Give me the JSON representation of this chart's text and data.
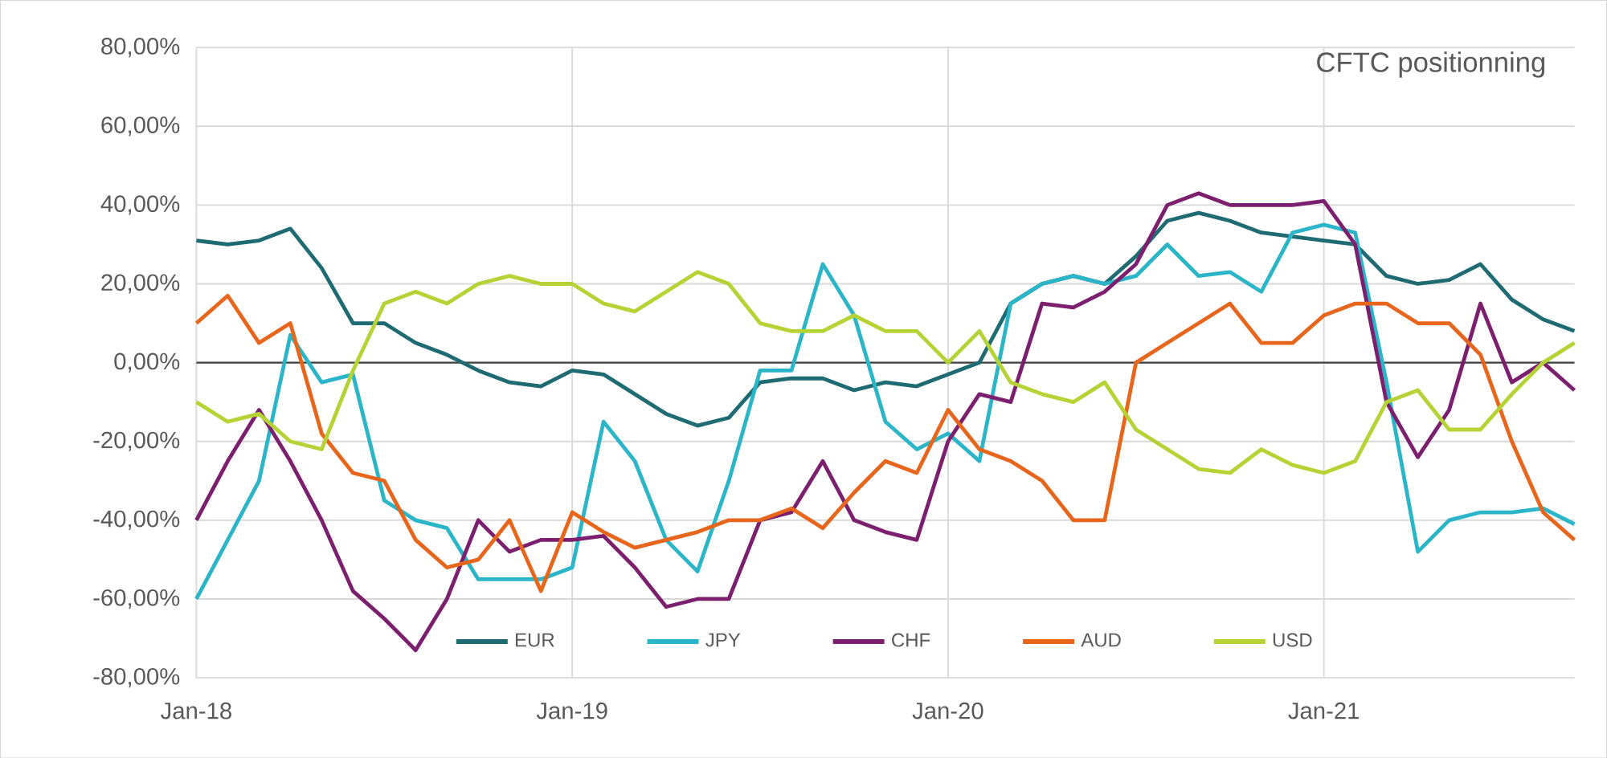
{
  "chart_data": {
    "type": "line",
    "title": "CFTC positionning",
    "x": [
      "2018-01-01",
      "2018-02-01",
      "2018-03-01",
      "2018-04-01",
      "2018-05-01",
      "2018-06-01",
      "2018-07-01",
      "2018-08-01",
      "2018-09-01",
      "2018-10-01",
      "2018-11-01",
      "2018-12-01",
      "2019-01-01",
      "2019-02-01",
      "2019-03-01",
      "2019-04-01",
      "2019-05-01",
      "2019-06-01",
      "2019-07-01",
      "2019-08-01",
      "2019-09-01",
      "2019-10-01",
      "2019-11-01",
      "2019-12-01",
      "2020-01-01",
      "2020-02-01",
      "2020-03-01",
      "2020-04-01",
      "2020-05-01",
      "2020-06-01",
      "2020-07-01",
      "2020-08-01",
      "2020-09-01",
      "2020-10-01",
      "2020-11-01",
      "2020-12-01",
      "2021-01-01",
      "2021-02-01",
      "2021-03-01",
      "2021-04-01",
      "2021-05-01",
      "2021-06-01",
      "2021-07-01",
      "2021-08-01",
      "2021-09-01"
    ],
    "series": [
      {
        "name": "EUR",
        "color": "#1f6b73",
        "values": [
          31,
          30,
          31,
          34,
          24,
          10,
          10,
          5,
          2,
          -2,
          -5,
          -6,
          -2,
          -3,
          -8,
          -13,
          -16,
          -14,
          -5,
          -4,
          -4,
          -7,
          -5,
          -6,
          -3,
          0,
          15,
          20,
          22,
          20,
          27,
          36,
          38,
          36,
          33,
          32,
          31,
          30,
          22,
          20,
          21,
          25,
          16,
          11,
          8
        ]
      },
      {
        "name": "JPY",
        "color": "#2bb5c8",
        "values": [
          -60,
          -45,
          -30,
          7,
          -5,
          -3,
          -35,
          -40,
          -42,
          -55,
          -55,
          -55,
          -52,
          -15,
          -25,
          -45,
          -53,
          -30,
          -2,
          -2,
          25,
          12,
          -15,
          -22,
          -18,
          -25,
          15,
          20,
          22,
          20,
          22,
          30,
          22,
          23,
          18,
          33,
          35,
          33,
          -5,
          -48,
          -40,
          -38,
          -38,
          -37,
          -41
        ]
      },
      {
        "name": "CHF",
        "color": "#7b1f6e",
        "values": [
          -40,
          -25,
          -12,
          -25,
          -40,
          -58,
          -65,
          -73,
          -60,
          -40,
          -48,
          -45,
          -45,
          -44,
          -52,
          -62,
          -60,
          -60,
          -40,
          -38,
          -25,
          -40,
          -43,
          -45,
          -20,
          -8,
          -10,
          15,
          14,
          18,
          25,
          40,
          43,
          40,
          40,
          40,
          41,
          30,
          -10,
          -24,
          -12,
          15,
          -5,
          0,
          -7
        ]
      },
      {
        "name": "AUD",
        "color": "#e8661c",
        "values": [
          10,
          17,
          5,
          10,
          -18,
          -28,
          -30,
          -45,
          -52,
          -50,
          -40,
          -58,
          -38,
          -43,
          -47,
          -45,
          -43,
          -40,
          -40,
          -37,
          -42,
          -33,
          -25,
          -28,
          -12,
          -22,
          -25,
          -30,
          -40,
          -40,
          0,
          5,
          10,
          15,
          5,
          5,
          12,
          15,
          15,
          10,
          10,
          2,
          -20,
          -38,
          -45
        ]
      },
      {
        "name": "USD",
        "color": "#b5d334",
        "values": [
          -10,
          -15,
          -13,
          -20,
          -22,
          -2,
          15,
          18,
          15,
          20,
          22,
          20,
          20,
          15,
          13,
          18,
          23,
          20,
          10,
          8,
          8,
          12,
          8,
          8,
          0,
          8,
          -5,
          -8,
          -10,
          -5,
          -17,
          -22,
          -27,
          -28,
          -22,
          -26,
          -28,
          -25,
          -10,
          -7,
          -17,
          -17,
          -8,
          0,
          5
        ]
      }
    ],
    "xlim": [
      "2018-01-01",
      "2021-09-01"
    ],
    "xticks": [
      {
        "value": "2018-01-01",
        "label": "Jan-18"
      },
      {
        "value": "2019-01-01",
        "label": "Jan-19"
      },
      {
        "value": "2020-01-01",
        "label": "Jan-20"
      },
      {
        "value": "2021-01-01",
        "label": "Jan-21"
      }
    ],
    "ylim": [
      -80,
      80
    ],
    "yticks": [
      {
        "value": -80,
        "label": "-80,00%"
      },
      {
        "value": -60,
        "label": "-60,00%"
      },
      {
        "value": -40,
        "label": "-40,00%"
      },
      {
        "value": -20,
        "label": "-20,00%"
      },
      {
        "value": 0,
        "label": "0,00%"
      },
      {
        "value": 20,
        "label": "20,00%"
      },
      {
        "value": 40,
        "label": "40,00%"
      },
      {
        "value": 60,
        "label": "60,00%"
      },
      {
        "value": 80,
        "label": "80,00%"
      }
    ],
    "ref_lines": [
      {
        "axis": "y",
        "value": 0,
        "color": "#404040"
      }
    ],
    "grid": true,
    "legend": "bottom",
    "marker": "none",
    "line_style": "solid"
  }
}
